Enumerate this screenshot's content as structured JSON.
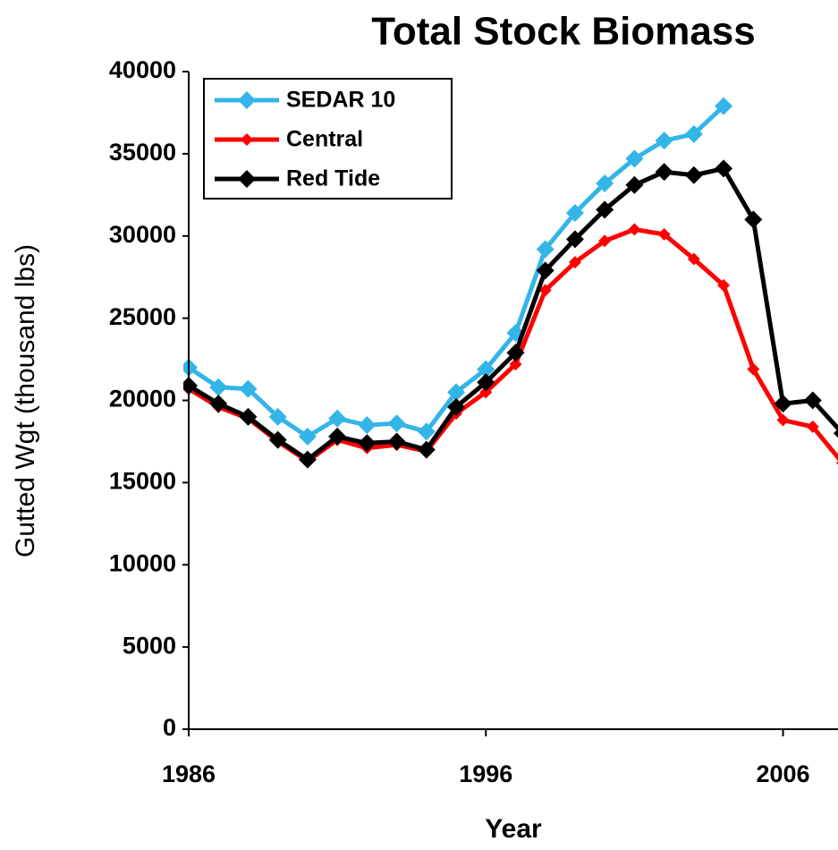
{
  "chart_data": {
    "type": "line",
    "title": "Total Stock Biomass",
    "xlabel": "Year",
    "ylabel": "Gutted Wgt (thousand lbs)",
    "x": [
      1986,
      1987,
      1988,
      1989,
      1990,
      1991,
      1992,
      1993,
      1994,
      1995,
      1996,
      1997,
      1998,
      1999,
      2000,
      2001,
      2002,
      2003,
      2004,
      2005,
      2006,
      2007,
      2008
    ],
    "series": [
      {
        "name": "SEDAR 10",
        "color": "#33b5e8",
        "values": [
          22000,
          20800,
          20700,
          19000,
          17800,
          18900,
          18500,
          18600,
          18100,
          20500,
          21900,
          24100,
          29200,
          31400,
          33200,
          34700,
          35800,
          36200,
          37900,
          null,
          null,
          null,
          null
        ]
      },
      {
        "name": "Central",
        "color": "#ff0000",
        "values": [
          20700,
          19600,
          18900,
          17500,
          16300,
          17600,
          17100,
          17300,
          16900,
          19200,
          20500,
          22200,
          26700,
          28400,
          29700,
          30400,
          30100,
          28600,
          27000,
          21900,
          18800,
          18400,
          16200
        ]
      },
      {
        "name": "Red Tide",
        "color": "#000000",
        "values": [
          20900,
          19800,
          19000,
          17600,
          16400,
          17800,
          17400,
          17500,
          17000,
          19600,
          21100,
          22900,
          27900,
          29800,
          31600,
          33100,
          33900,
          33700,
          34100,
          31000,
          19800,
          20000,
          18000
        ]
      }
    ],
    "xlim": [
      1986,
      2007.85
    ],
    "xticks": [
      1986,
      1996,
      2006
    ],
    "ylim": [
      0,
      40000
    ],
    "yticks": [
      0,
      5000,
      10000,
      15000,
      20000,
      25000,
      30000,
      35000,
      40000
    ],
    "legend": "upper left"
  }
}
